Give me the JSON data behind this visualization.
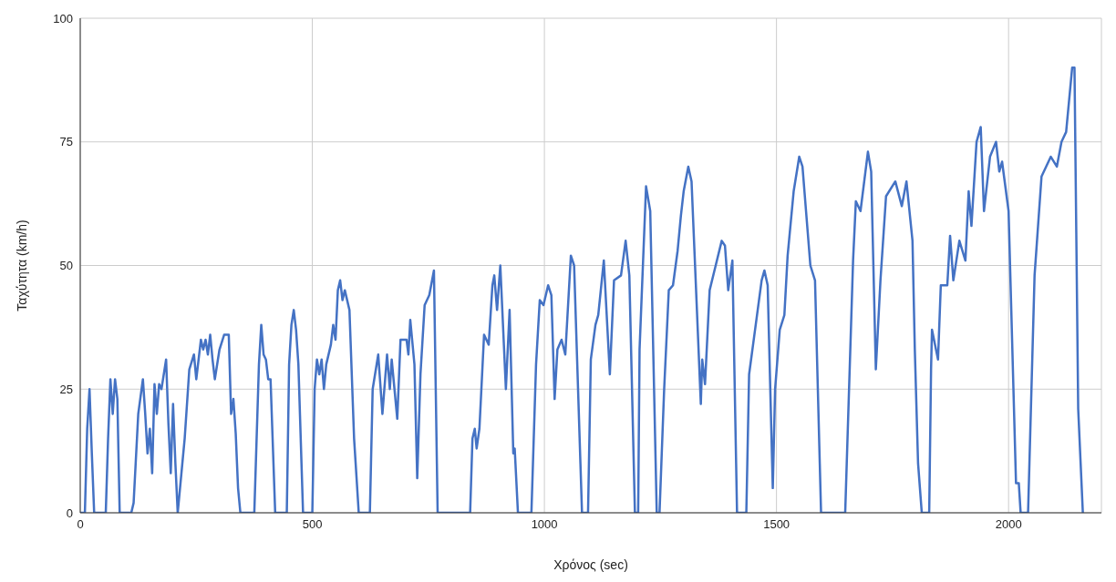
{
  "chart_data": {
    "type": "line",
    "xlabel": "Χρόνος (sec)",
    "ylabel": "Ταχύτητα (km/h)",
    "xlim": [
      0,
      2200
    ],
    "xticks": [
      0,
      500,
      1000,
      1500,
      2000
    ],
    "ylim": [
      0,
      100
    ],
    "yticks": [
      0,
      25,
      50,
      75,
      100
    ],
    "grid": true,
    "legend": false,
    "marker": "none",
    "line_style": "solid",
    "series": [
      {
        "color": "#4472c4",
        "x": [
          0,
          10,
          15,
          20,
          25,
          30,
          55,
          60,
          65,
          70,
          75,
          80,
          85,
          110,
          115,
          125,
          135,
          140,
          145,
          150,
          155,
          160,
          165,
          170,
          175,
          185,
          190,
          195,
          200,
          205,
          210,
          225,
          235,
          245,
          250,
          260,
          265,
          270,
          275,
          280,
          285,
          290,
          300,
          310,
          320,
          325,
          330,
          335,
          340,
          345,
          375,
          385,
          390,
          395,
          400,
          405,
          410,
          420,
          445,
          450,
          455,
          460,
          465,
          470,
          480,
          500,
          505,
          510,
          515,
          520,
          525,
          530,
          540,
          545,
          550,
          555,
          560,
          565,
          570,
          580,
          590,
          600,
          624,
          630,
          642,
          651,
          661,
          667,
          671,
          683,
          690,
          703,
          707,
          711,
          720,
          726,
          733,
          742,
          752,
          762,
          770,
          840,
          845,
          850,
          854,
          860,
          870,
          880,
          888,
          892,
          898,
          905,
          917,
          925,
          933,
          936,
          943,
          972,
          982,
          990,
          998,
          1008,
          1015,
          1022,
          1028,
          1037,
          1045,
          1057,
          1064,
          1081,
          1094,
          1100,
          1110,
          1116,
          1128,
          1141,
          1150,
          1165,
          1175,
          1183,
          1195,
          1202,
          1205,
          1219,
          1228,
          1242,
          1248,
          1258,
          1268,
          1277,
          1287,
          1294,
          1300,
          1310,
          1317,
          1337,
          1340,
          1346,
          1356,
          1369,
          1382,
          1389,
          1396,
          1405,
          1415,
          1435,
          1441,
          1451,
          1468,
          1474,
          1481,
          1492,
          1497,
          1507,
          1517,
          1524,
          1537,
          1549,
          1556,
          1573,
          1583,
          1596,
          1648,
          1665,
          1671,
          1681,
          1697,
          1704,
          1714,
          1724,
          1736,
          1756,
          1770,
          1780,
          1793,
          1798,
          1805,
          1809,
          1813,
          1829,
          1833,
          1835,
          1848,
          1854,
          1868,
          1874,
          1881,
          1894,
          1907,
          1914,
          1920,
          1931,
          1940,
          1947,
          1960,
          1973,
          1980,
          1986,
          2000,
          2016,
          2022,
          2026,
          2042,
          2056,
          2071,
          2091,
          2104,
          2114,
          2124,
          2137,
          2142,
          2150,
          2160
        ],
        "values": [
          0,
          0,
          17,
          25,
          12,
          0,
          0,
          15,
          27,
          20,
          27,
          23,
          0,
          0,
          2,
          20,
          27,
          20,
          12,
          17,
          8,
          26,
          20,
          26,
          25,
          31,
          18,
          8,
          22,
          10,
          0,
          15,
          29,
          32,
          27,
          35,
          33,
          35,
          32,
          36,
          31,
          27,
          33,
          36,
          36,
          20,
          23,
          16,
          5,
          0,
          0,
          30,
          38,
          32,
          31,
          27,
          27,
          0,
          0,
          30,
          38,
          41,
          37,
          30,
          0,
          0,
          25,
          31,
          28,
          31,
          25,
          30,
          34,
          38,
          35,
          45,
          47,
          43,
          45,
          41,
          15,
          0,
          0,
          25,
          32,
          20,
          32,
          25,
          31,
          19,
          35,
          35,
          32,
          39,
          30,
          7,
          28,
          42,
          44,
          49,
          0,
          0,
          15,
          17,
          13,
          17,
          36,
          34,
          46,
          48,
          41,
          50,
          25,
          41,
          12,
          13,
          0,
          0,
          30,
          43,
          42,
          46,
          44,
          23,
          33,
          35,
          32,
          52,
          50,
          0,
          0,
          31,
          38,
          40,
          51,
          28,
          47,
          48,
          55,
          48,
          0,
          0,
          33,
          66,
          61,
          0,
          0,
          25,
          45,
          46,
          53,
          60,
          65,
          70,
          67,
          22,
          31,
          26,
          45,
          50,
          55,
          54,
          45,
          51,
          0,
          0,
          28,
          35,
          47,
          49,
          46,
          5,
          25,
          37,
          40,
          52,
          65,
          72,
          70,
          50,
          47,
          0,
          0,
          51,
          63,
          61,
          73,
          69,
          29,
          47,
          64,
          67,
          62,
          67,
          55,
          33,
          10,
          5,
          0,
          0,
          29,
          37,
          31,
          46,
          46,
          56,
          47,
          55,
          51,
          65,
          58,
          75,
          78,
          61,
          72,
          75,
          69,
          71,
          61,
          6,
          6,
          0,
          0,
          48,
          68,
          72,
          70,
          75,
          77,
          90,
          90,
          21,
          0
        ]
      }
    ]
  }
}
